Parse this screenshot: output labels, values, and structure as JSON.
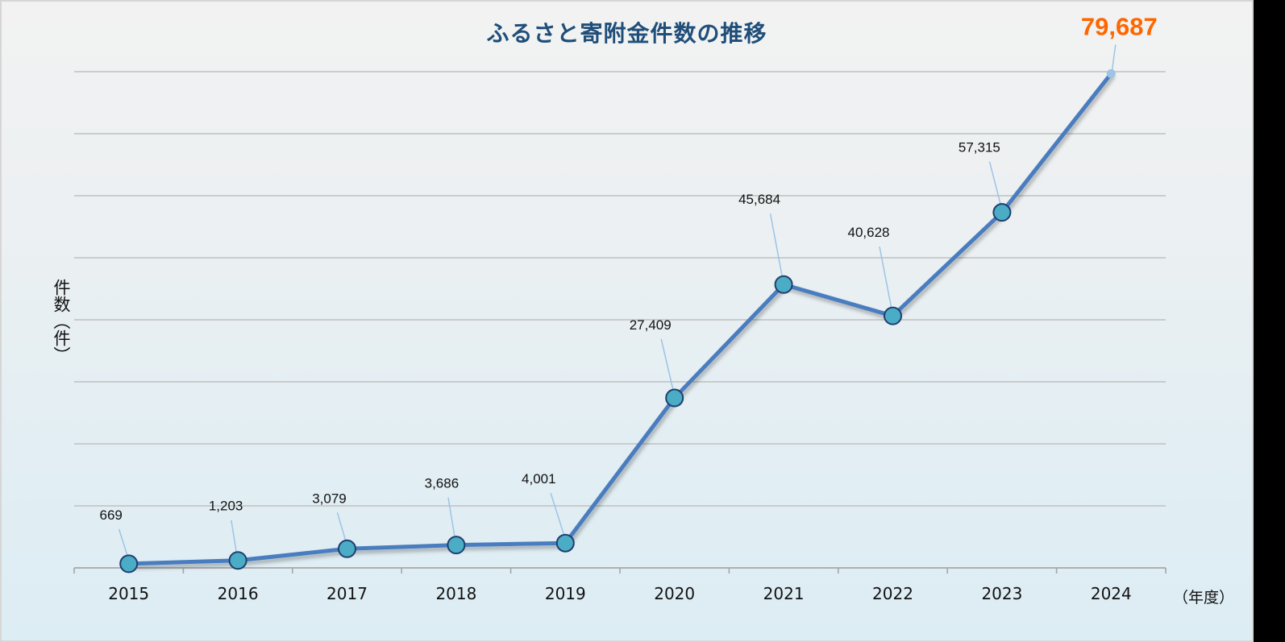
{
  "chart_data": {
    "type": "line",
    "title": "ふるさと寄附金件数の推移",
    "xlabel": "（年度）",
    "ylabel": "件数（件）",
    "categories": [
      "2015",
      "2016",
      "2017",
      "2018",
      "2019",
      "2020",
      "2021",
      "2022",
      "2023",
      "2024"
    ],
    "series": [
      {
        "name": "件数",
        "values": [
          669,
          1203,
          3079,
          3686,
          4001,
          27409,
          45684,
          40628,
          57315,
          79687
        ],
        "labels": [
          "669",
          "1,203",
          "3,079",
          "3,686",
          "4,001",
          "27,409",
          "45,684",
          "40,628",
          "57,315",
          "79,687"
        ]
      }
    ],
    "ylim": [
      0,
      80000
    ],
    "y_gridline_step": 10000,
    "y_tick_labels_visible": false,
    "grid": true,
    "legend": "none",
    "highlight": {
      "category": "2024",
      "label": "79,687",
      "color": "#ff6600"
    }
  },
  "colors": {
    "title": "#1f4e79",
    "line": "#4a7dbf",
    "marker_fill": "#4bacc6",
    "marker_stroke": "#1f3f6e",
    "leader": "#9dc3e6",
    "highlight_label": "#ff6600",
    "gridline": "#bfbfbf"
  }
}
